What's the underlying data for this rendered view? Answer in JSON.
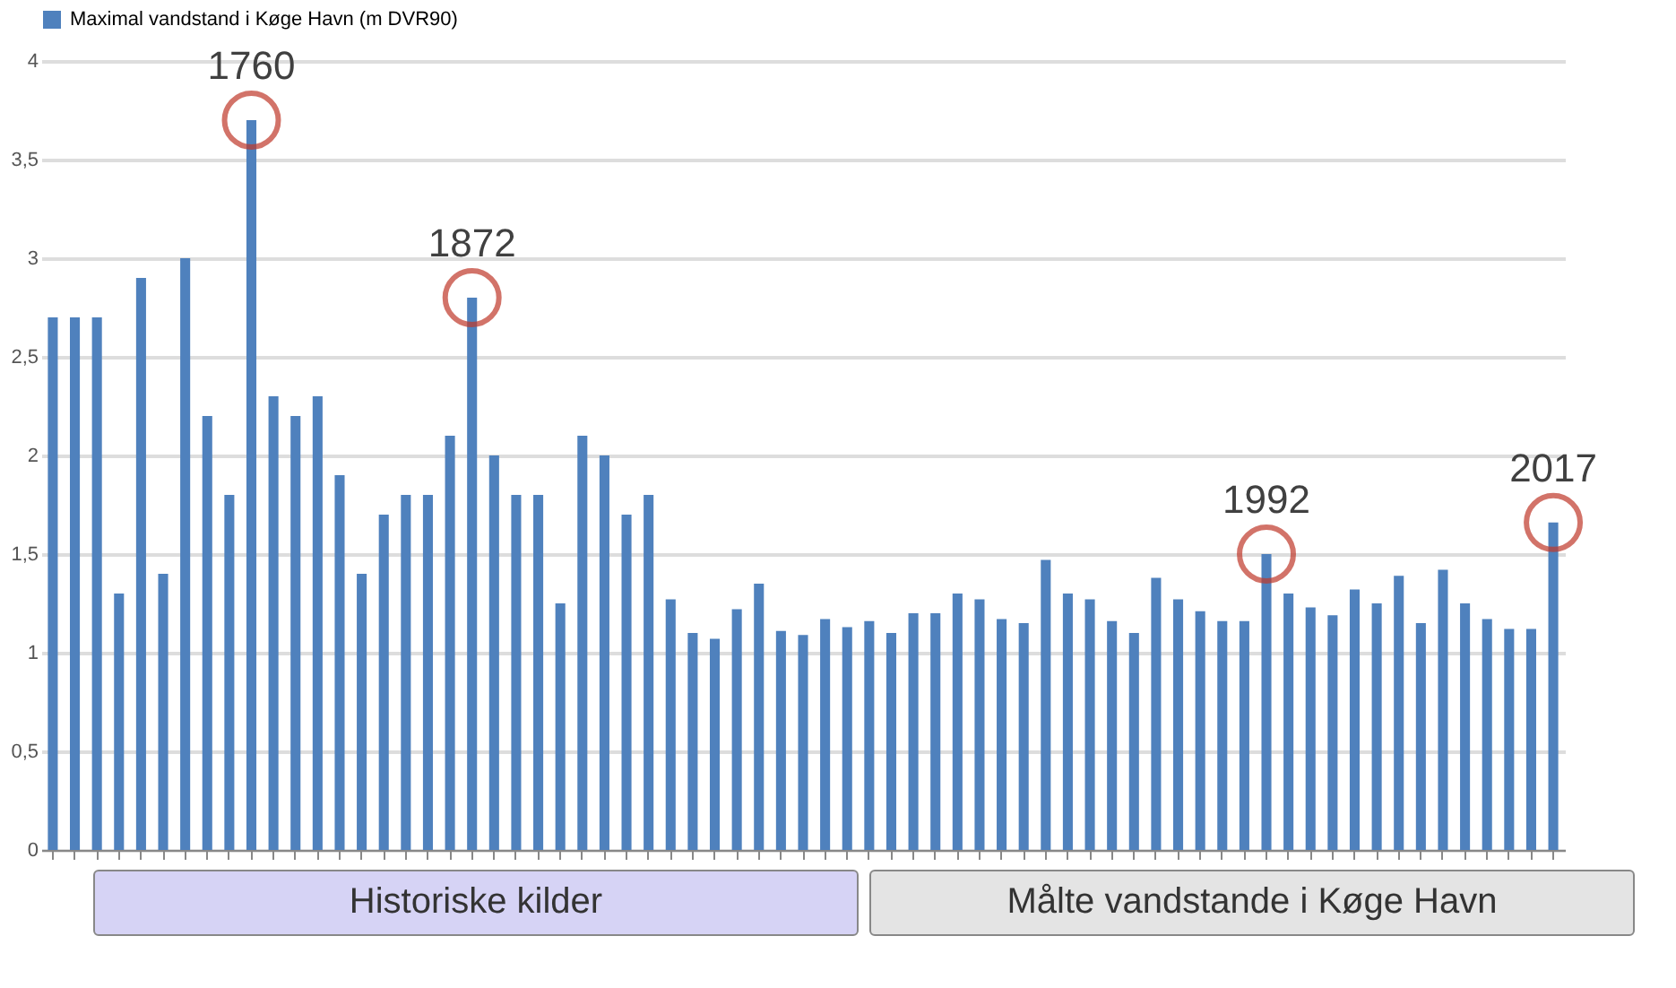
{
  "chart_data": {
    "type": "bar",
    "categories": [
      null,
      null,
      null,
      null,
      null,
      null,
      null,
      null,
      null,
      null,
      null,
      null,
      null,
      null,
      null,
      null,
      null,
      null,
      null,
      null,
      null,
      null,
      null,
      null,
      null,
      null,
      null,
      null,
      null,
      null,
      null,
      null,
      null,
      null,
      null,
      null,
      null,
      null,
      null,
      null,
      null,
      null,
      null,
      null,
      null,
      null,
      null,
      null,
      null,
      null,
      null,
      null,
      null,
      null,
      null,
      null,
      null,
      null,
      null,
      null,
      null,
      null,
      null,
      null,
      null,
      null,
      null,
      null,
      null
    ],
    "series": [
      {
        "name": "Maximal vandstand i Køge Havn (m DVR90)",
        "color": "#4f81bd",
        "values": [
          2.7,
          2.7,
          2.7,
          1.3,
          2.9,
          1.4,
          3.0,
          2.2,
          1.8,
          3.7,
          2.3,
          2.2,
          2.3,
          1.9,
          1.4,
          1.7,
          1.8,
          1.8,
          2.1,
          2.8,
          2.0,
          1.8,
          1.8,
          1.25,
          2.1,
          2.0,
          1.7,
          1.8,
          1.27,
          1.1,
          1.07,
          1.22,
          1.35,
          1.11,
          1.09,
          1.17,
          1.13,
          1.16,
          1.1,
          1.2,
          1.2,
          1.3,
          1.27,
          1.17,
          1.15,
          1.47,
          1.3,
          1.27,
          1.16,
          1.1,
          1.38,
          1.27,
          1.21,
          1.16,
          1.16,
          1.5,
          1.3,
          1.23,
          1.19,
          1.32,
          1.25,
          1.39,
          1.15,
          1.42,
          1.25,
          1.17,
          1.12,
          1.12,
          1.66
        ]
      }
    ],
    "ylim": [
      0,
      4
    ],
    "yticks": [
      0,
      {
        "value": 0.5,
        "label": "0,5"
      },
      1,
      {
        "value": 1.5,
        "label": "1,5"
      },
      2,
      {
        "value": 2.5,
        "label": "2,5"
      },
      3,
      {
        "value": 3.5,
        "label": "3,5"
      },
      4
    ],
    "grid": "y",
    "legend": "top",
    "tick_labels": "y",
    "annotations": [
      {
        "text": "1760",
        "y": 3.7
      },
      {
        "text": "1872",
        "y": 2.8
      },
      {
        "text": "1992",
        "y": 1.5
      },
      {
        "text": "2017",
        "y": 1.66
      },
      "Historiske kilder",
      "Målte vandstande i Køge Havn"
    ]
  }
}
